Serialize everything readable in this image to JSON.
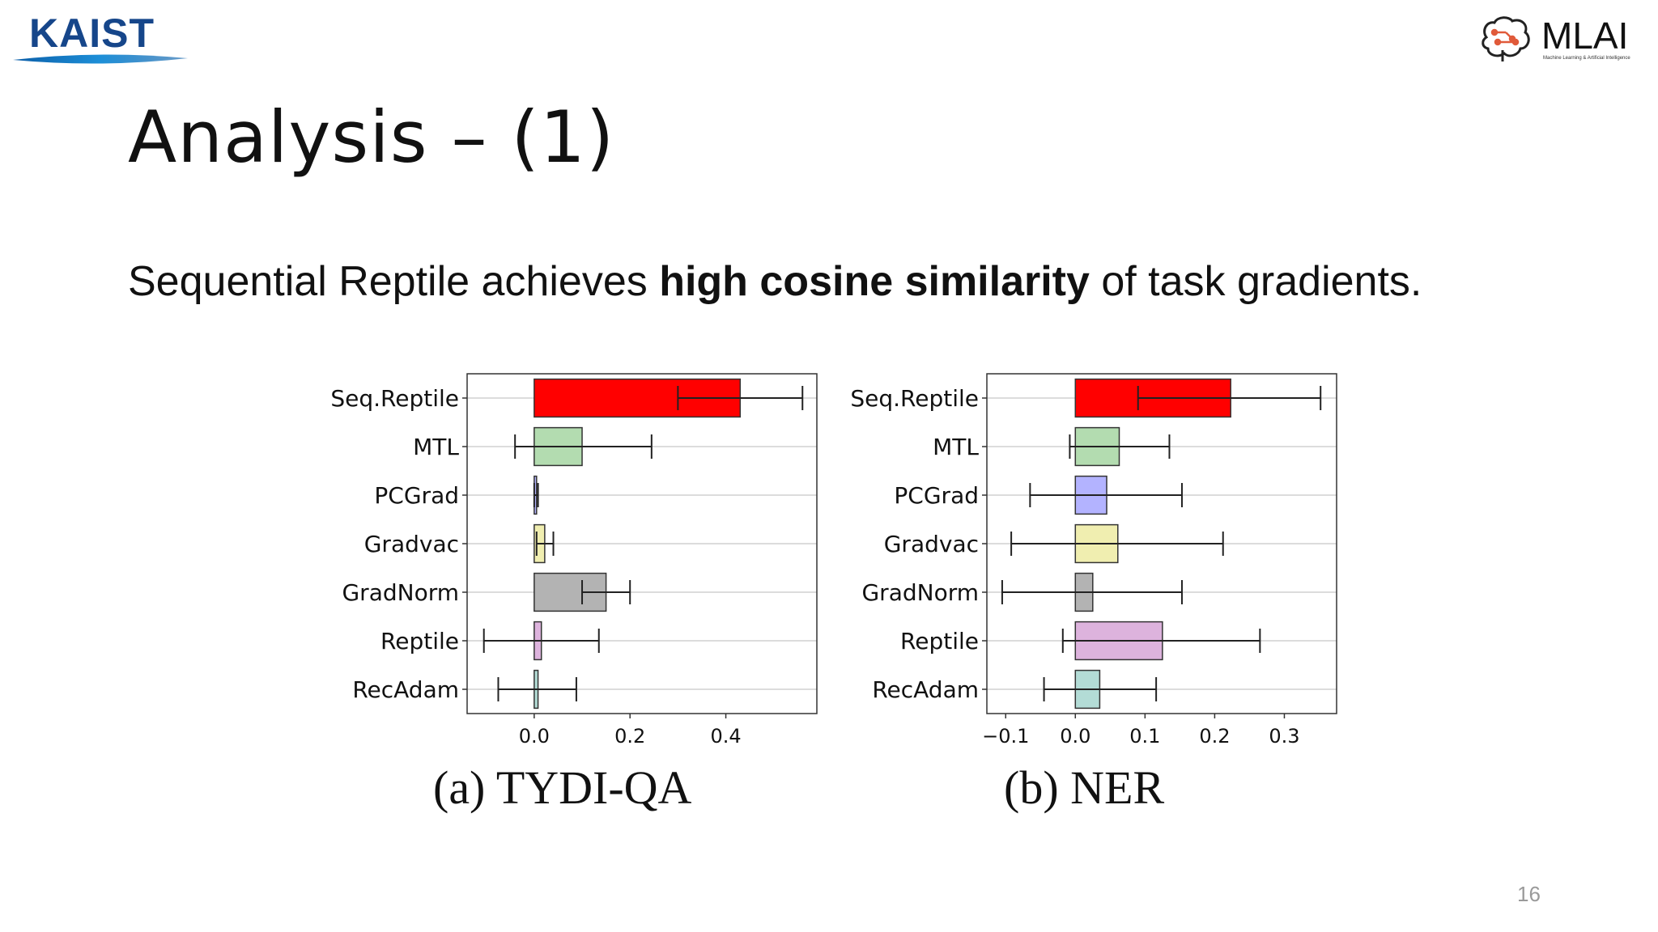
{
  "logos": {
    "left": "KAIST",
    "right": "MLAI",
    "right_tagline": "Machine Learning & Artificial Intelligence"
  },
  "slide": {
    "title": "Analysis – (1)",
    "subtitle_pre": "Sequential Reptile achieves ",
    "subtitle_bold": "high cosine similarity",
    "subtitle_post": " of task gradients.",
    "page_number": "16"
  },
  "chart_data": [
    {
      "type": "bar",
      "orientation": "horizontal",
      "caption": "(a) TYDI-QA",
      "categories": [
        "Seq.Reptile",
        "MTL",
        "PCGrad",
        "Gradvac",
        "GradNorm",
        "Reptile",
        "RecAdam"
      ],
      "values": [
        0.43,
        0.1,
        0.005,
        0.022,
        0.15,
        0.015,
        0.008
      ],
      "error_low": [
        0.3,
        -0.04,
        0.0,
        0.005,
        0.1,
        -0.105,
        -0.075
      ],
      "error_high": [
        0.56,
        0.245,
        0.008,
        0.04,
        0.2,
        0.135,
        0.088
      ],
      "colors": [
        "#ff0000",
        "#b3dcb0",
        "#b3b3ff",
        "#f0eeb0",
        "#b3b3b3",
        "#ddb3dd",
        "#b3dcd6"
      ],
      "xlim": [
        -0.14,
        0.59
      ],
      "xticks": [
        0.0,
        0.2,
        0.4
      ],
      "xtick_labels": [
        "0.0",
        "0.2",
        "0.4"
      ],
      "grid": "horizontal"
    },
    {
      "type": "bar",
      "orientation": "horizontal",
      "caption": "(b) NER",
      "categories": [
        "Seq.Reptile",
        "MTL",
        "PCGrad",
        "Gradvac",
        "GradNorm",
        "Reptile",
        "RecAdam"
      ],
      "values": [
        0.223,
        0.063,
        0.045,
        0.061,
        0.025,
        0.125,
        0.035
      ],
      "error_low": [
        0.09,
        -0.008,
        -0.065,
        -0.092,
        -0.105,
        -0.018,
        -0.045
      ],
      "error_high": [
        0.352,
        0.135,
        0.153,
        0.212,
        0.153,
        0.265,
        0.116
      ],
      "colors": [
        "#ff0000",
        "#b3dcb0",
        "#b3b3ff",
        "#f0eeb0",
        "#b3b3b3",
        "#ddb3dd",
        "#b3dcd6"
      ],
      "xlim": [
        -0.127,
        0.375
      ],
      "xticks": [
        -0.1,
        0.0,
        0.1,
        0.2,
        0.3
      ],
      "xtick_labels": [
        "−0.1",
        "0.0",
        "0.1",
        "0.2",
        "0.3"
      ],
      "grid": "horizontal"
    }
  ]
}
